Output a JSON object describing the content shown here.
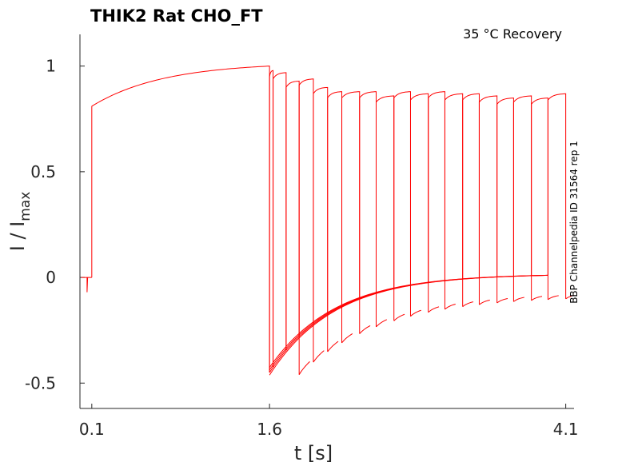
{
  "chart_data": {
    "type": "line",
    "title": "THIK2  Rat  CHO_FT",
    "annotation": "35 °C  Recovery",
    "side_label": "BBP Channelpedia ID 31564 rep 1",
    "xlabel": "t [s]",
    "ylabel_main": "I / I",
    "ylabel_sub": "max",
    "xlim": [
      0.0,
      4.17
    ],
    "ylim": [
      -0.62,
      1.15
    ],
    "xticks": [
      0.1,
      1.6,
      4.1
    ],
    "xtick_labels": [
      "0.1",
      "1.6",
      "4.1"
    ],
    "yticks": [
      1,
      0.5,
      0,
      -0.5
    ],
    "ytick_labels": [
      "1",
      "0.5",
      "0",
      "-0.5"
    ],
    "grid": false,
    "color": "#ff0000",
    "prepulse": {
      "t_start": 0.1,
      "t_end": 1.6,
      "i_start": 0.81,
      "i_end": 1.0,
      "baseline": 0.0,
      "spike": -0.07
    },
    "tail_upper": {
      "t_start": 1.6,
      "t_end": 3.95,
      "i_start": -0.45,
      "i_end": 0.01
    },
    "tail_lower": {
      "t_start": 1.85,
      "t_end": 4.17,
      "i_start": -0.46,
      "i_end": -0.1
    },
    "recovery_pulses": [
      {
        "t_on": 1.6,
        "t_off": 1.63,
        "i_peak": 0.98
      },
      {
        "t_on": 1.63,
        "t_off": 1.74,
        "i_peak": 0.97
      },
      {
        "t_on": 1.74,
        "t_off": 1.85,
        "i_peak": 0.93
      },
      {
        "t_on": 1.85,
        "t_off": 1.97,
        "i_peak": 0.94
      },
      {
        "t_on": 1.97,
        "t_off": 2.09,
        "i_peak": 0.9
      },
      {
        "t_on": 2.09,
        "t_off": 2.21,
        "i_peak": 0.88
      },
      {
        "t_on": 2.21,
        "t_off": 2.36,
        "i_peak": 0.88
      },
      {
        "t_on": 2.36,
        "t_off": 2.5,
        "i_peak": 0.88
      },
      {
        "t_on": 2.5,
        "t_off": 2.65,
        "i_peak": 0.86
      },
      {
        "t_on": 2.65,
        "t_off": 2.79,
        "i_peak": 0.88
      },
      {
        "t_on": 2.79,
        "t_off": 2.94,
        "i_peak": 0.87
      },
      {
        "t_on": 2.94,
        "t_off": 3.08,
        "i_peak": 0.88
      },
      {
        "t_on": 3.08,
        "t_off": 3.23,
        "i_peak": 0.87
      },
      {
        "t_on": 3.23,
        "t_off": 3.37,
        "i_peak": 0.87
      },
      {
        "t_on": 3.37,
        "t_off": 3.52,
        "i_peak": 0.86
      },
      {
        "t_on": 3.52,
        "t_off": 3.66,
        "i_peak": 0.85
      },
      {
        "t_on": 3.66,
        "t_off": 3.81,
        "i_peak": 0.86
      },
      {
        "t_on": 3.81,
        "t_off": 3.95,
        "i_peak": 0.85
      },
      {
        "t_on": 3.95,
        "t_off": 4.1,
        "i_peak": 0.87
      }
    ]
  }
}
